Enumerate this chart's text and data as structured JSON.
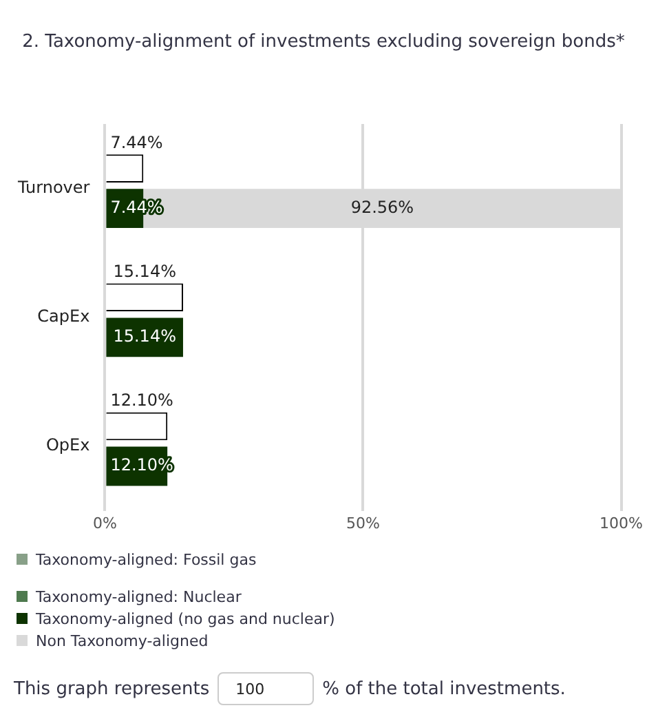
{
  "chart_data": {
    "type": "bar",
    "orientation": "horizontal",
    "title": "2. Taxonomy-alignment of investments excluding sovereign bonds*",
    "categories": [
      "Turnover",
      "CapEx",
      "OpEx"
    ],
    "series": [
      {
        "color": "#ffffff",
        "values": [
          7.44,
          15.14,
          12.1
        ],
        "value_labels": [
          "7.44%",
          "15.14%",
          "12.10%"
        ]
      },
      {
        "name": "Taxonomy-aligned: Fossil gas",
        "color": "#88a088",
        "values": [
          null,
          null,
          null
        ]
      },
      {
        "name": "Taxonomy-aligned: Nuclear",
        "color": "#4f7a4f",
        "values": [
          null,
          null,
          null
        ]
      },
      {
        "name": "Taxonomy-aligned (no gas and nuclear)",
        "color": "#0d3300",
        "values": [
          7.44,
          15.14,
          12.1
        ],
        "value_labels": [
          "7.44%",
          "15.14%",
          "12.10%"
        ]
      },
      {
        "name": "Non Taxonomy-aligned",
        "color": "#d9d9d9",
        "values": [
          92.56,
          null,
          null
        ],
        "base": [
          7.44,
          null,
          null
        ],
        "value_labels": [
          "92.56%",
          null,
          null
        ]
      }
    ],
    "xlim": [
      0,
      100
    ],
    "xticks": [
      {
        "value": 0,
        "label": "0%"
      },
      {
        "value": 50,
        "label": "50%"
      },
      {
        "value": 100,
        "label": "100%"
      }
    ],
    "grid": "x",
    "legend": "bottom",
    "annotations": [
      "This graph represents",
      "100",
      "% of the total investments."
    ]
  }
}
